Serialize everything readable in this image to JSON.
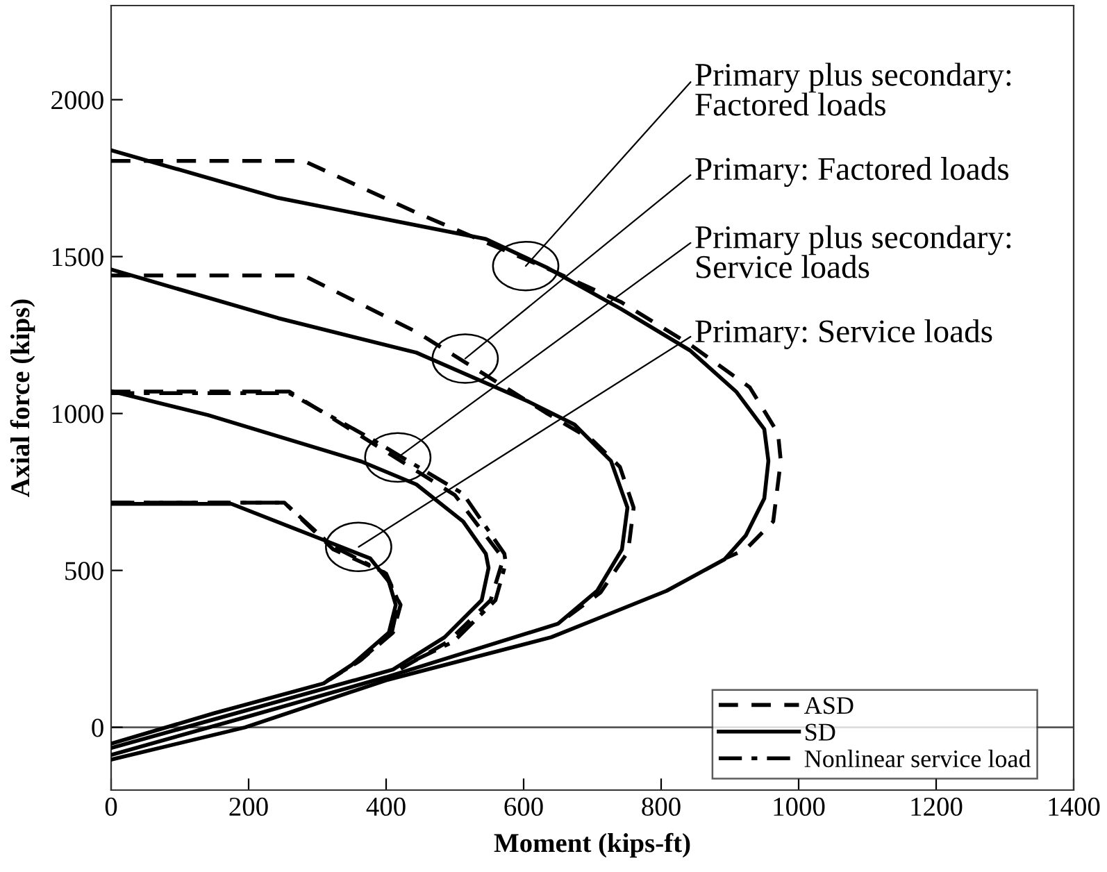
{
  "chart_data": {
    "type": "line",
    "xlabel": "Moment (kips-ft)",
    "ylabel": "Axial force (kips)",
    "xlim": [
      0,
      1400
    ],
    "xticks": [
      0,
      200,
      400,
      600,
      800,
      1000,
      1200,
      1400
    ],
    "ylim": [
      -200,
      2300
    ],
    "yticks": [
      0,
      500,
      1000,
      1500,
      2000
    ],
    "grid": false,
    "legend": "bottom right",
    "marker": "none",
    "ref_lines": [
      {
        "axis": "y",
        "value": 0,
        "color": "#555555"
      }
    ],
    "annotations": [
      {
        "text": "Primary plus secondary:\nFactored loads",
        "x": 603,
        "y": 1470
      },
      {
        "text": "Primary: Factored loads",
        "x": 515,
        "y": 1175
      },
      {
        "text": "Primary plus secondary:\nService loads",
        "x": 417,
        "y": 860
      },
      {
        "text": "Primary: Service loads",
        "x": 360,
        "y": 575
      }
    ],
    "series": [
      {
        "name": "ASD",
        "color": "#000000",
        "line_style": "dashed",
        "x": [
          0,
          280,
          444,
          646,
          741,
          842,
          929,
          970,
          974,
          963,
          923,
          895
        ],
        "values": [
          1805,
          1805,
          1640,
          1451,
          1356,
          1220,
          1083,
          937,
          849,
          656,
          567,
          540
        ]
      },
      {
        "name": "SD",
        "color": "#000000",
        "line_style": "solid",
        "x": [
          0,
          243,
          545,
          633,
          741,
          842,
          909,
          950,
          956,
          950,
          923,
          892,
          808,
          707,
          640,
          400,
          195,
          0
        ],
        "values": [
          1839,
          1687,
          1556,
          1466,
          1334,
          1201,
          1070,
          950,
          849,
          729,
          611,
          535,
          435,
          346,
          287,
          150,
          0,
          -103
        ]
      },
      {
        "color": "#000000",
        "line_style": "dashed",
        "x": [
          0,
          280,
          444,
          632,
          700,
          740,
          760,
          752,
          712,
          650
        ],
        "values": [
          1440,
          1440,
          1260,
          1003,
          915,
          830,
          700,
          560,
          430,
          330
        ]
      },
      {
        "color": "#000000",
        "line_style": "solid",
        "x": [
          0,
          243,
          444,
          606,
          674,
          727,
          751,
          743,
          707,
          650,
          400,
          200,
          0
        ],
        "values": [
          1459,
          1304,
          1194,
          1039,
          965,
          849,
          700,
          567,
          435,
          330,
          160,
          35,
          -88
        ]
      },
      {
        "color": "#000000",
        "line_style": "solid",
        "x": [
          0,
          141,
          364,
          444,
          512,
          545,
          549,
          539,
          485,
          410,
          200,
          0
        ],
        "values": [
          1071,
          995,
          847,
          774,
          656,
          553,
          508,
          405,
          287,
          184,
          56,
          -66
        ]
      },
      {
        "color": "#000000",
        "line_style": "dashed",
        "x": [
          0,
          259,
          377,
          500,
          565,
          568,
          552,
          490,
          420
        ],
        "values": [
          1070,
          1070,
          910,
          740,
          553,
          520,
          405,
          273,
          185
        ]
      },
      {
        "name": "Nonlinear service load",
        "color": "#000000",
        "line_style": "dashdot",
        "x": [
          0,
          259,
          377,
          512,
          572,
          574,
          559,
          498,
          424
        ],
        "values": [
          1065,
          1065,
          921,
          744,
          553,
          523,
          405,
          273,
          195
        ]
      },
      {
        "color": "#000000",
        "line_style": "solid",
        "x": [
          0,
          175,
          309,
          377,
          404,
          414,
          404,
          350,
          309,
          150,
          0
        ],
        "values": [
          712,
          712,
          597,
          538,
          464,
          390,
          302,
          199,
          140,
          45,
          -52
        ]
      },
      {
        "color": "#000000",
        "line_style": "dashed",
        "x": [
          0,
          252,
          323,
          397,
          421,
          410,
          363,
          318
        ],
        "values": [
          716,
          716,
          567,
          494,
          390,
          302,
          214,
          152
        ]
      },
      {
        "color": "#000000",
        "line_style": "dashdot",
        "x": [
          0,
          252,
          320,
          400,
          418,
          408,
          360,
          314
        ],
        "values": [
          716,
          716,
          580,
          490,
          400,
          300,
          210,
          148
        ]
      }
    ]
  }
}
